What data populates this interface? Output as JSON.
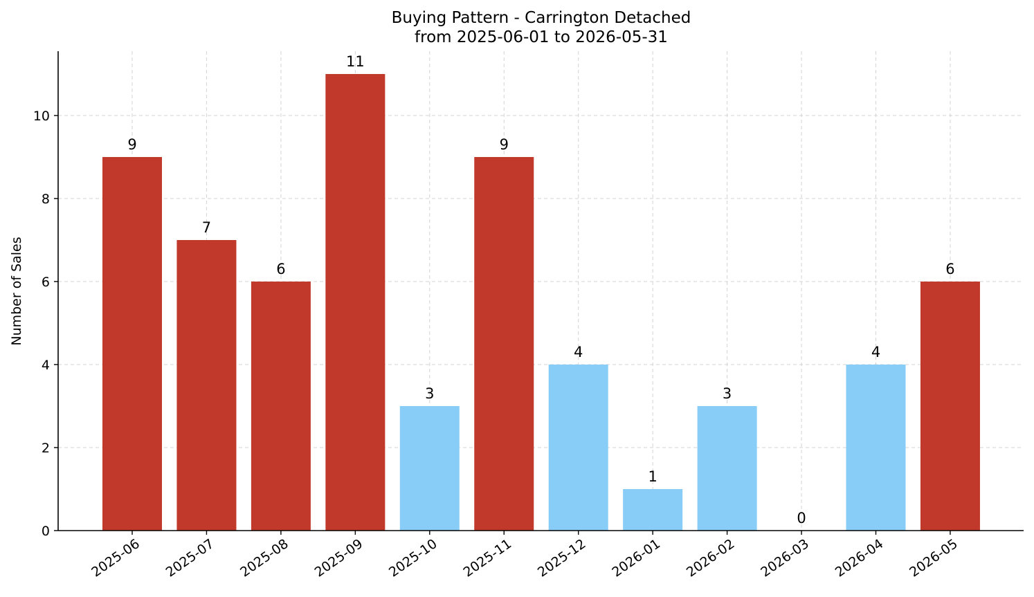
{
  "chart_data": {
    "type": "bar",
    "title_line1": "Buying Pattern - Carrington Detached",
    "title_line2": "from 2025-06-01 to 2026-05-31",
    "xlabel": "",
    "ylabel": "Number of Sales",
    "categories": [
      "2025-06",
      "2025-07",
      "2025-08",
      "2025-09",
      "2025-10",
      "2025-11",
      "2025-12",
      "2026-01",
      "2026-02",
      "2026-03",
      "2026-04",
      "2026-05"
    ],
    "values": [
      9,
      7,
      6,
      11,
      3,
      9,
      4,
      1,
      3,
      0,
      4,
      6
    ],
    "bar_colors": [
      "#c0392b",
      "#c0392b",
      "#c0392b",
      "#c0392b",
      "#87cdf7",
      "#c0392b",
      "#87cdf7",
      "#87cdf7",
      "#87cdf7",
      "#87cdf7",
      "#87cdf7",
      "#c0392b"
    ],
    "ylim": [
      0,
      11.55
    ],
    "yticks": [
      0,
      2,
      4,
      6,
      8,
      10
    ],
    "grid": true,
    "data_labels": true
  }
}
